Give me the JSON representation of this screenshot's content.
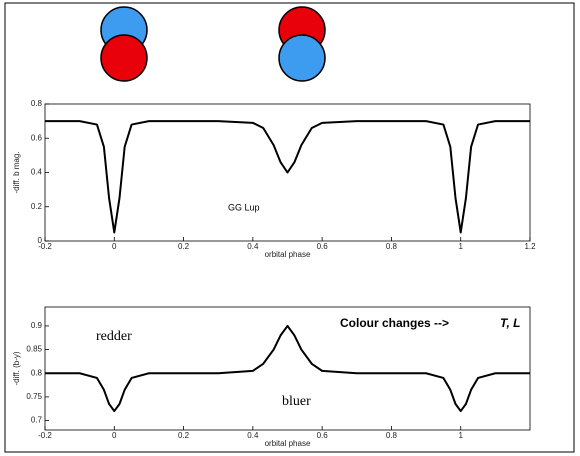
{
  "chart_data": [
    {
      "type": "line",
      "xlabel": "orbital phase",
      "ylabel": "-diff. b mag.",
      "annotations": [
        "GG Lup"
      ],
      "xlim": [
        -0.2,
        1.2
      ],
      "xticks": [
        -0.2,
        0,
        0.2,
        0.4,
        0.6,
        0.8,
        1,
        1.2
      ],
      "ylim": [
        0,
        0.8
      ],
      "yticks": [
        0,
        0.2,
        0.4,
        0.6,
        0.8
      ],
      "x": [
        -0.2,
        -0.1,
        -0.05,
        -0.03,
        -0.015,
        0,
        0.015,
        0.03,
        0.05,
        0.1,
        0.2,
        0.3,
        0.4,
        0.43,
        0.46,
        0.48,
        0.5,
        0.52,
        0.54,
        0.57,
        0.6,
        0.7,
        0.8,
        0.9,
        0.95,
        0.97,
        0.985,
        1,
        1.015,
        1.03,
        1.05,
        1.1,
        1.2
      ],
      "series": [
        {
          "color": "#000000",
          "values": [
            0.7,
            0.7,
            0.68,
            0.55,
            0.25,
            0.05,
            0.25,
            0.55,
            0.68,
            0.7,
            0.7,
            0.7,
            0.69,
            0.66,
            0.56,
            0.46,
            0.4,
            0.46,
            0.56,
            0.66,
            0.69,
            0.7,
            0.7,
            0.7,
            0.68,
            0.55,
            0.25,
            0.05,
            0.25,
            0.55,
            0.68,
            0.7,
            0.7
          ]
        }
      ]
    },
    {
      "type": "line",
      "xlabel": "orbital phase",
      "ylabel": "-diff. (b-y)",
      "annotations": [
        "redder",
        "bluer",
        "Colour changes -->",
        "T, L"
      ],
      "xlim": [
        -0.2,
        1.2
      ],
      "xticks": [
        -0.2,
        0,
        0.2,
        0.4,
        0.6,
        0.8,
        1
      ],
      "ylim": [
        0.68,
        0.94
      ],
      "yticks": [
        0.7,
        0.75,
        0.8,
        0.85,
        0.9
      ],
      "x": [
        -0.2,
        -0.1,
        -0.05,
        -0.03,
        -0.015,
        0,
        0.015,
        0.03,
        0.05,
        0.1,
        0.2,
        0.3,
        0.4,
        0.43,
        0.46,
        0.48,
        0.5,
        0.52,
        0.54,
        0.57,
        0.6,
        0.7,
        0.8,
        0.9,
        0.95,
        0.97,
        0.985,
        1,
        1.015,
        1.03,
        1.05,
        1.1,
        1.2
      ],
      "series": [
        {
          "color": "#000000",
          "values": [
            0.8,
            0.8,
            0.79,
            0.765,
            0.735,
            0.72,
            0.735,
            0.765,
            0.79,
            0.8,
            0.8,
            0.8,
            0.805,
            0.82,
            0.85,
            0.88,
            0.9,
            0.88,
            0.85,
            0.82,
            0.805,
            0.8,
            0.8,
            0.8,
            0.79,
            0.765,
            0.735,
            0.72,
            0.735,
            0.765,
            0.79,
            0.8,
            0.8
          ]
        }
      ]
    }
  ]
}
